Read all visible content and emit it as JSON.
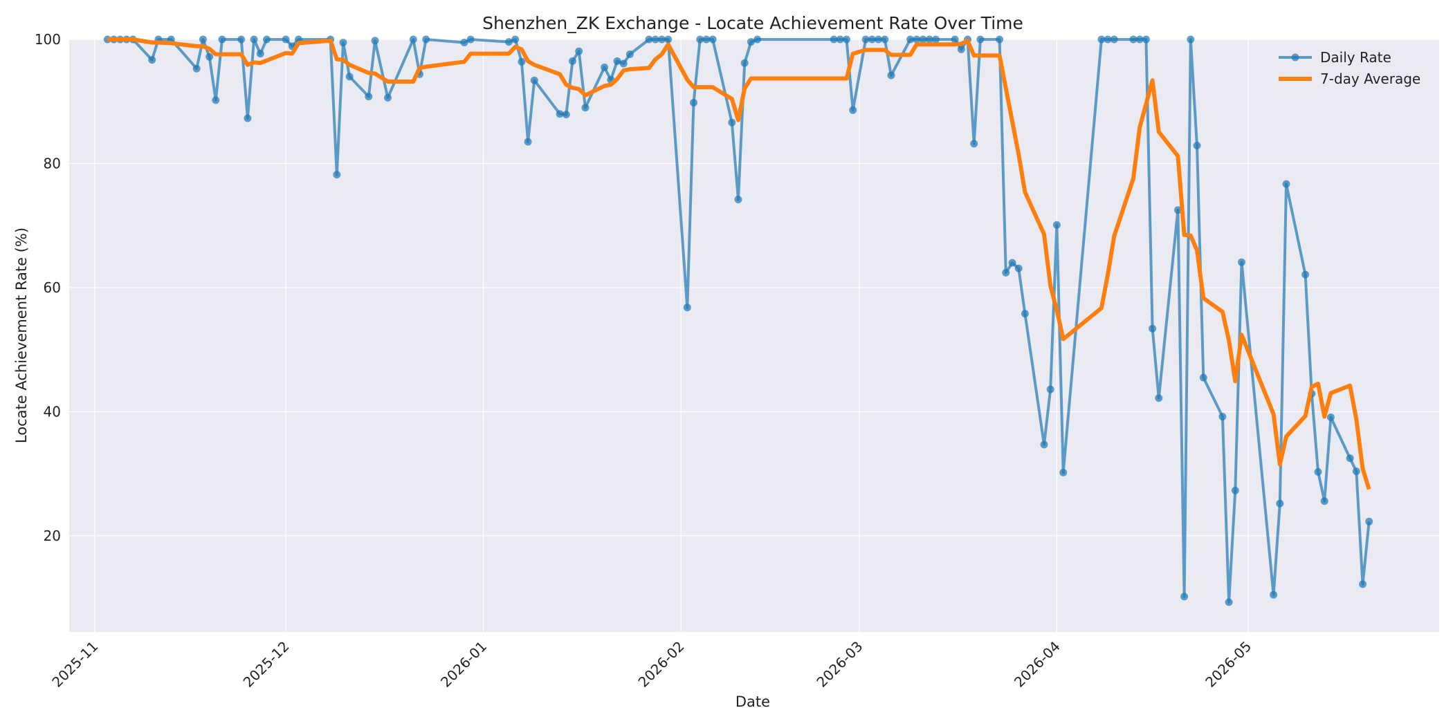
{
  "chart_data": {
    "type": "line",
    "title": "Shenzhen_ZK Exchange - Locate Achievement Rate Over Time",
    "xlabel": "Date",
    "ylabel": "Locate Achievement Rate (%)",
    "xlim": [
      "2025-10-28",
      "2026-05-31"
    ],
    "ylim": [
      4.5,
      100
    ],
    "x_ticks": [
      "2025-11",
      "2025-12",
      "2026-01",
      "2026-02",
      "2026-03",
      "2026-04",
      "2026-05"
    ],
    "y_ticks": [
      20,
      40,
      60,
      80,
      100
    ],
    "grid": true,
    "legend": "top-right",
    "colors": {
      "daily": "#1f77b4",
      "average": "#ff7f0e",
      "plot_bg": "#eaeaf2",
      "grid": "#ffffff"
    },
    "series": [
      {
        "name": "Daily Rate",
        "style": "line-with-markers",
        "points": [
          [
            "2025-11-03",
            100
          ],
          [
            "2025-11-04",
            100
          ],
          [
            "2025-11-05",
            100
          ],
          [
            "2025-11-06",
            100
          ],
          [
            "2025-11-07",
            100
          ],
          [
            "2025-11-10",
            96.7
          ],
          [
            "2025-11-11",
            100
          ],
          [
            "2025-11-13",
            100
          ],
          [
            "2025-11-17",
            95.3
          ],
          [
            "2025-11-18",
            100
          ],
          [
            "2025-11-19",
            97.2
          ],
          [
            "2025-11-20",
            90.2
          ],
          [
            "2025-11-21",
            100
          ],
          [
            "2025-11-24",
            100
          ],
          [
            "2025-11-25",
            87.3
          ],
          [
            "2025-11-26",
            100
          ],
          [
            "2025-11-27",
            97.7
          ],
          [
            "2025-11-28",
            100
          ],
          [
            "2025-12-01",
            100
          ],
          [
            "2025-12-02",
            98.9
          ],
          [
            "2025-12-03",
            100
          ],
          [
            "2025-12-08",
            100
          ],
          [
            "2025-12-09",
            78.2
          ],
          [
            "2025-12-10",
            99.5
          ],
          [
            "2025-12-11",
            94
          ],
          [
            "2025-12-14",
            90.8
          ],
          [
            "2025-12-15",
            99.8
          ],
          [
            "2025-12-17",
            90.6
          ],
          [
            "2025-12-21",
            100
          ],
          [
            "2025-12-22",
            94.4
          ],
          [
            "2025-12-23",
            100
          ],
          [
            "2025-12-29",
            99.5
          ],
          [
            "2025-12-30",
            100
          ],
          [
            "2026-01-05",
            99.6
          ],
          [
            "2026-01-06",
            100
          ],
          [
            "2026-01-07",
            96.4
          ],
          [
            "2026-01-08",
            83.5
          ],
          [
            "2026-01-09",
            93.4
          ],
          [
            "2026-01-13",
            88
          ],
          [
            "2026-01-14",
            87.9
          ],
          [
            "2026-01-15",
            96.5
          ],
          [
            "2026-01-16",
            98.1
          ],
          [
            "2026-01-17",
            89
          ],
          [
            "2026-01-20",
            95.5
          ],
          [
            "2026-01-21",
            93.5
          ],
          [
            "2026-01-22",
            96.5
          ],
          [
            "2026-01-23",
            96.1
          ],
          [
            "2026-01-24",
            97.6
          ],
          [
            "2026-01-27",
            100
          ],
          [
            "2026-01-28",
            100
          ],
          [
            "2026-01-29",
            100
          ],
          [
            "2026-01-30",
            100
          ],
          [
            "2026-02-02",
            56.8
          ],
          [
            "2026-02-03",
            89.8
          ],
          [
            "2026-02-04",
            100
          ],
          [
            "2026-02-05",
            100
          ],
          [
            "2026-02-06",
            100
          ],
          [
            "2026-02-09",
            86.6
          ],
          [
            "2026-02-10",
            74.2
          ],
          [
            "2026-02-11",
            96.2
          ],
          [
            "2026-02-12",
            99.6
          ],
          [
            "2026-02-13",
            100
          ],
          [
            "2026-02-25",
            100
          ],
          [
            "2026-02-26",
            100
          ],
          [
            "2026-02-27",
            100
          ],
          [
            "2026-02-28",
            88.6
          ],
          [
            "2026-03-02",
            100
          ],
          [
            "2026-03-03",
            100
          ],
          [
            "2026-03-04",
            100
          ],
          [
            "2026-03-05",
            100
          ],
          [
            "2026-03-06",
            94.2
          ],
          [
            "2026-03-09",
            100
          ],
          [
            "2026-03-10",
            100
          ],
          [
            "2026-03-11",
            100
          ],
          [
            "2026-03-12",
            100
          ],
          [
            "2026-03-13",
            100
          ],
          [
            "2026-03-16",
            100
          ],
          [
            "2026-03-17",
            98.4
          ],
          [
            "2026-03-18",
            100
          ],
          [
            "2026-03-19",
            83.2
          ],
          [
            "2026-03-20",
            100
          ],
          [
            "2026-03-23",
            100
          ],
          [
            "2026-03-24",
            62.4
          ],
          [
            "2026-03-25",
            64
          ],
          [
            "2026-03-26",
            63.1
          ],
          [
            "2026-03-27",
            55.8
          ],
          [
            "2026-03-30",
            34.7
          ],
          [
            "2026-03-31",
            43.6
          ],
          [
            "2026-04-01",
            70.1
          ],
          [
            "2026-04-02",
            30.2
          ],
          [
            "2026-04-08",
            100
          ],
          [
            "2026-04-09",
            100
          ],
          [
            "2026-04-10",
            100
          ],
          [
            "2026-04-13",
            100
          ],
          [
            "2026-04-14",
            100
          ],
          [
            "2026-04-15",
            100
          ],
          [
            "2026-04-16",
            53.4
          ],
          [
            "2026-04-17",
            42.2
          ],
          [
            "2026-04-20",
            72.5
          ],
          [
            "2026-04-21",
            10.2
          ],
          [
            "2026-04-22",
            100
          ],
          [
            "2026-04-23",
            82.9
          ],
          [
            "2026-04-24",
            45.5
          ],
          [
            "2026-04-27",
            39.2
          ],
          [
            "2026-04-28",
            9.3
          ],
          [
            "2026-04-29",
            27.3
          ],
          [
            "2026-04-30",
            64.1
          ],
          [
            "2026-05-05",
            10.5
          ],
          [
            "2026-05-06",
            25.2
          ],
          [
            "2026-05-07",
            76.7
          ],
          [
            "2026-05-10",
            62.1
          ],
          [
            "2026-05-11",
            42.9
          ],
          [
            "2026-05-12",
            30.3
          ],
          [
            "2026-05-13",
            25.6
          ],
          [
            "2026-05-14",
            39.1
          ],
          [
            "2026-05-17",
            32.5
          ],
          [
            "2026-05-18",
            30.4
          ],
          [
            "2026-05-19",
            12.2
          ],
          [
            "2026-05-20",
            22.3
          ]
        ]
      },
      {
        "name": "7-day Average",
        "style": "line",
        "points": [
          [
            "2025-11-03",
            100
          ],
          [
            "2025-11-07",
            100
          ],
          [
            "2025-11-10",
            99.5
          ],
          [
            "2025-11-11",
            99.5
          ],
          [
            "2025-11-13",
            99.4
          ],
          [
            "2025-11-17",
            98.9
          ],
          [
            "2025-11-18",
            98.9
          ],
          [
            "2025-11-19",
            98.5
          ],
          [
            "2025-11-20",
            97.6
          ],
          [
            "2025-11-21",
            97.6
          ],
          [
            "2025-11-24",
            97.6
          ],
          [
            "2025-11-25",
            95.9
          ],
          [
            "2025-11-26",
            96.3
          ],
          [
            "2025-11-27",
            96.2
          ],
          [
            "2025-11-28",
            96.6
          ],
          [
            "2025-12-01",
            97.8
          ],
          [
            "2025-12-02",
            97.7
          ],
          [
            "2025-12-03",
            99.4
          ],
          [
            "2025-12-08",
            99.8
          ],
          [
            "2025-12-09",
            96.8
          ],
          [
            "2025-12-10",
            96.7
          ],
          [
            "2025-12-11",
            95.9
          ],
          [
            "2025-12-14",
            94.6
          ],
          [
            "2025-12-15",
            94.5
          ],
          [
            "2025-12-17",
            93.2
          ],
          [
            "2025-12-21",
            93.2
          ],
          [
            "2025-12-22",
            95.4
          ],
          [
            "2025-12-23",
            95.6
          ],
          [
            "2025-12-29",
            96.4
          ],
          [
            "2025-12-30",
            97.7
          ],
          [
            "2026-01-05",
            97.7
          ],
          [
            "2026-01-06",
            98.8
          ],
          [
            "2026-01-07",
            98.4
          ],
          [
            "2026-01-08",
            96.5
          ],
          [
            "2026-01-09",
            95.9
          ],
          [
            "2026-01-13",
            94.4
          ],
          [
            "2026-01-14",
            92.7
          ],
          [
            "2026-01-15",
            92.2
          ],
          [
            "2026-01-16",
            92
          ],
          [
            "2026-01-17",
            91
          ],
          [
            "2026-01-20",
            92.5
          ],
          [
            "2026-01-21",
            92.7
          ],
          [
            "2026-01-22",
            93.6
          ],
          [
            "2026-01-23",
            95
          ],
          [
            "2026-01-24",
            95.2
          ],
          [
            "2026-01-27",
            95.4
          ],
          [
            "2026-01-28",
            96.8
          ],
          [
            "2026-01-29",
            97.6
          ],
          [
            "2026-01-30",
            99.2
          ],
          [
            "2026-02-02",
            93.5
          ],
          [
            "2026-02-03",
            92.3
          ],
          [
            "2026-02-04",
            92.3
          ],
          [
            "2026-02-06",
            92.3
          ],
          [
            "2026-02-09",
            90.4
          ],
          [
            "2026-02-10",
            87
          ],
          [
            "2026-02-11",
            92.1
          ],
          [
            "2026-02-12",
            93.7
          ],
          [
            "2026-02-27",
            93.7
          ],
          [
            "2026-02-28",
            97.7
          ],
          [
            "2026-03-02",
            98.3
          ],
          [
            "2026-03-05",
            98.3
          ],
          [
            "2026-03-06",
            97.5
          ],
          [
            "2026-03-09",
            97.5
          ],
          [
            "2026-03-10",
            99.2
          ],
          [
            "2026-03-13",
            99.2
          ],
          [
            "2026-03-16",
            99.2
          ],
          [
            "2026-03-17",
            99.3
          ],
          [
            "2026-03-18",
            99.8
          ],
          [
            "2026-03-19",
            97.4
          ],
          [
            "2026-03-23",
            97.4
          ],
          [
            "2026-03-26",
            81.5
          ],
          [
            "2026-03-27",
            75.4
          ],
          [
            "2026-03-30",
            68.6
          ],
          [
            "2026-03-31",
            60.3
          ],
          [
            "2026-04-01",
            56.4
          ],
          [
            "2026-04-02",
            51.7
          ],
          [
            "2026-04-08",
            56.7
          ],
          [
            "2026-04-09",
            62.1
          ],
          [
            "2026-04-10",
            68.3
          ],
          [
            "2026-04-13",
            77.6
          ],
          [
            "2026-04-14",
            85.8
          ],
          [
            "2026-04-16",
            93.4
          ],
          [
            "2026-04-17",
            85.1
          ],
          [
            "2026-04-20",
            81.2
          ],
          [
            "2026-04-21",
            68.5
          ],
          [
            "2026-04-22",
            68.4
          ],
          [
            "2026-04-23",
            66
          ],
          [
            "2026-04-24",
            58.3
          ],
          [
            "2026-04-27",
            56.1
          ],
          [
            "2026-04-28",
            51.5
          ],
          [
            "2026-04-29",
            44.9
          ],
          [
            "2026-04-30",
            52.4
          ],
          [
            "2026-05-05",
            39.6
          ],
          [
            "2026-05-06",
            31.5
          ],
          [
            "2026-05-07",
            36
          ],
          [
            "2026-05-10",
            39.3
          ],
          [
            "2026-05-11",
            44
          ],
          [
            "2026-05-12",
            44.5
          ],
          [
            "2026-05-13",
            39.2
          ],
          [
            "2026-05-14",
            43
          ],
          [
            "2026-05-17",
            44.2
          ],
          [
            "2026-05-18",
            38.8
          ],
          [
            "2026-05-19",
            30.8
          ],
          [
            "2026-05-20",
            27.5
          ]
        ]
      }
    ]
  }
}
